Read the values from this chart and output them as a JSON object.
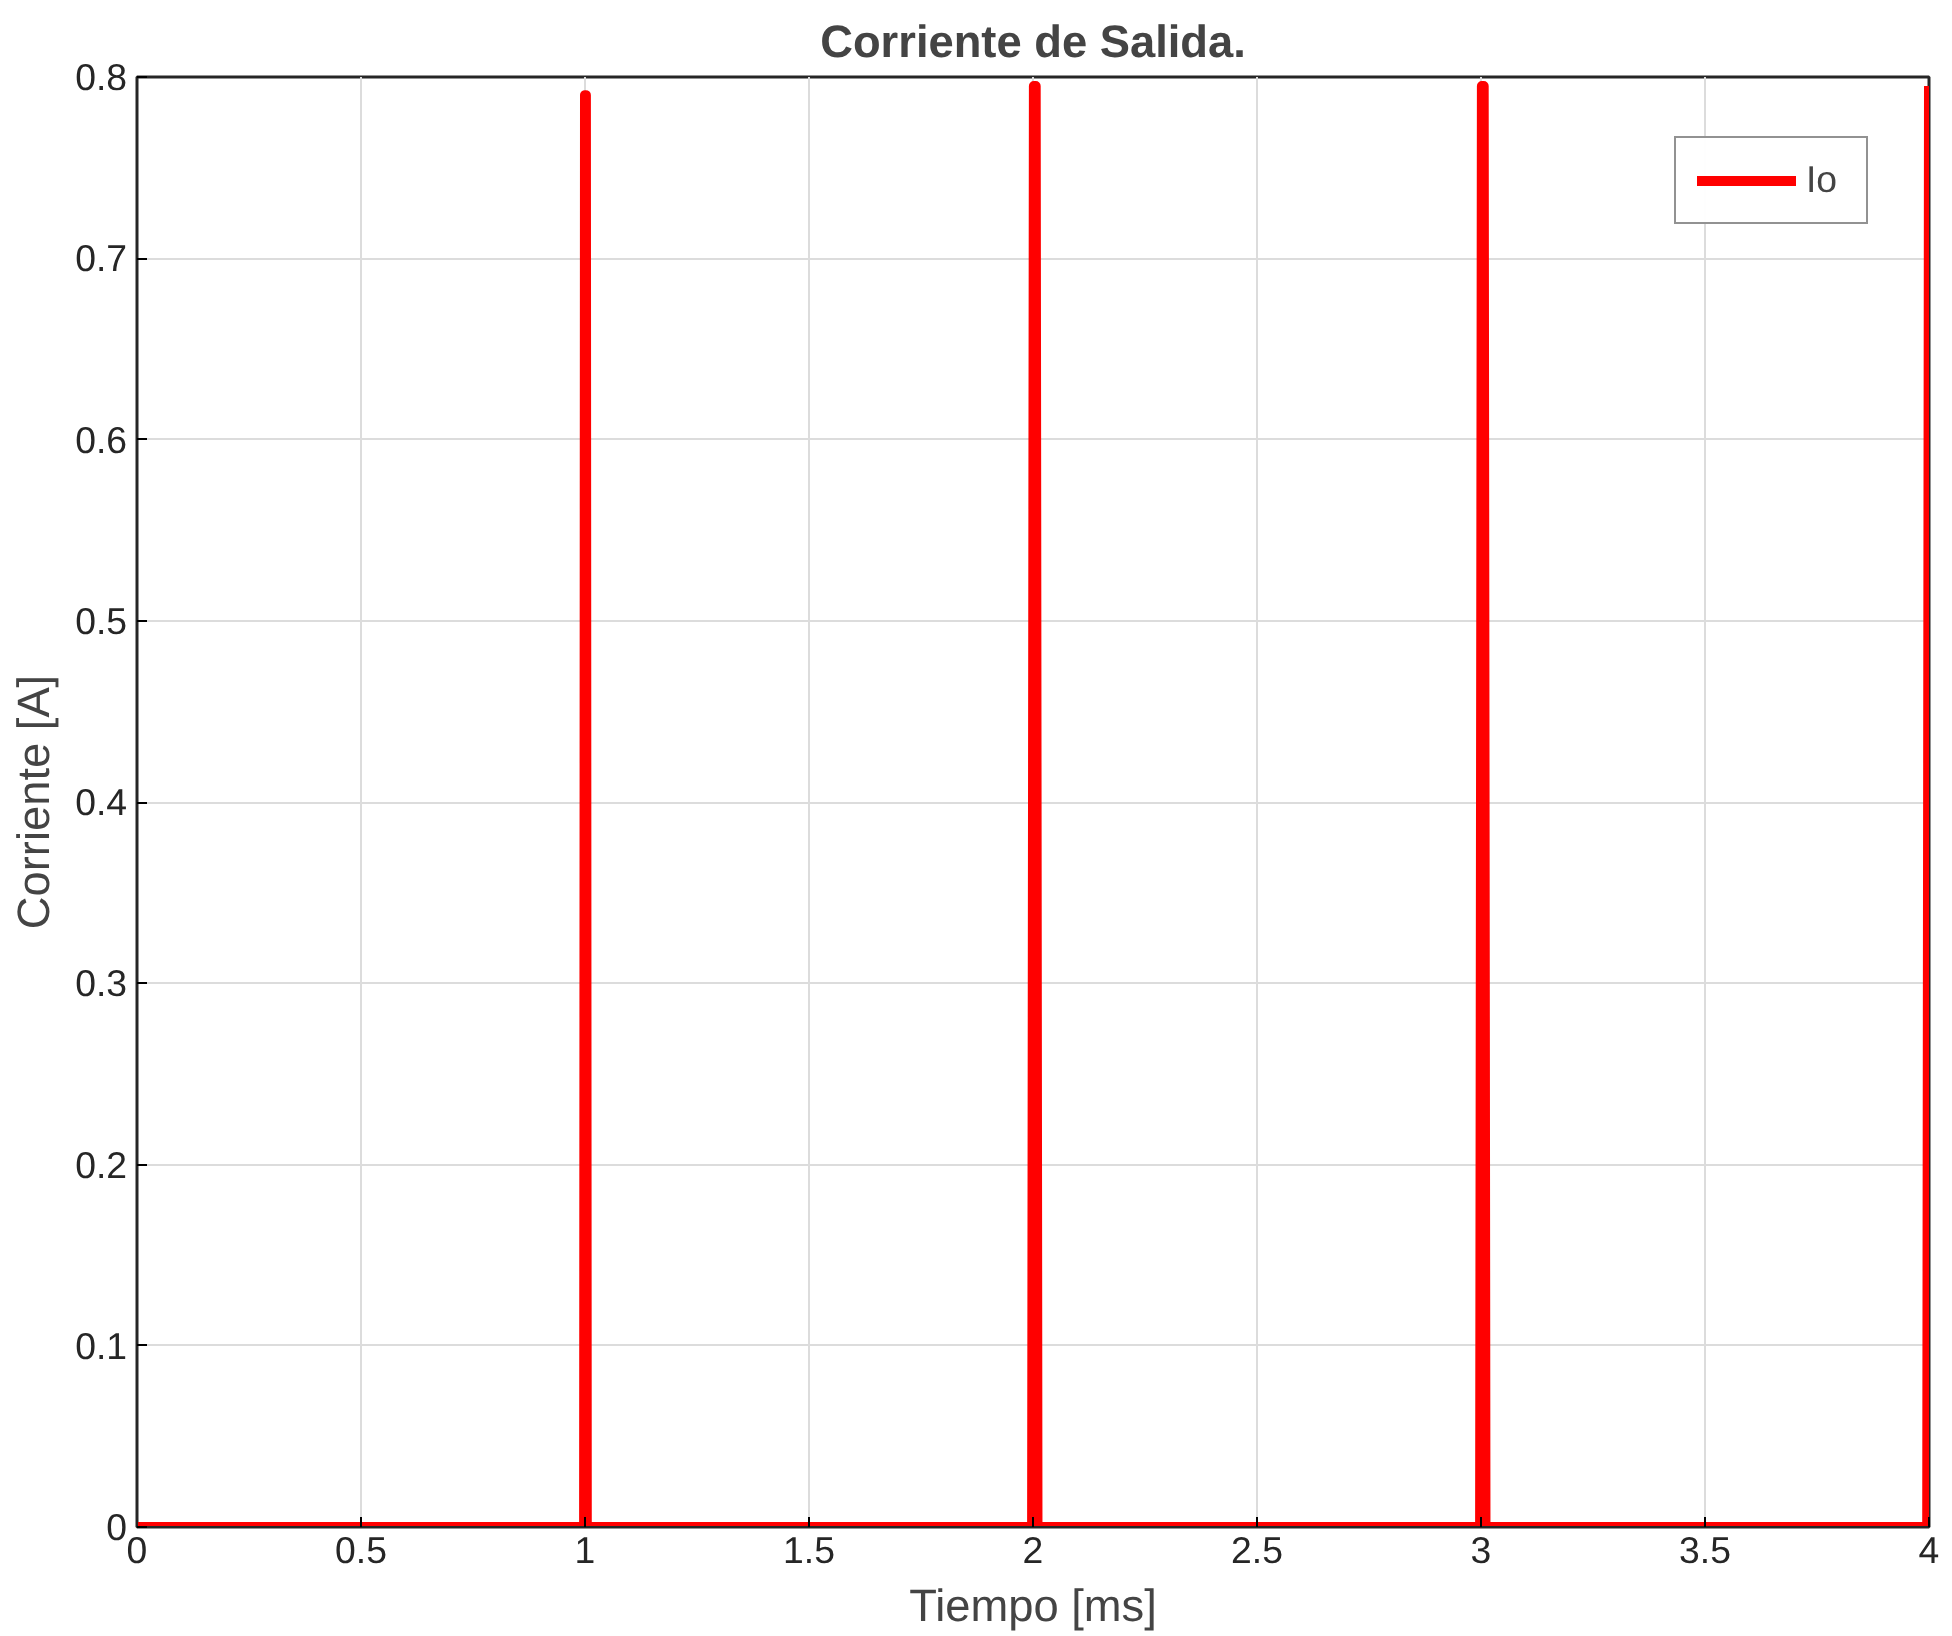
{
  "chart_data": {
    "type": "line",
    "title": "Corriente de Salida.",
    "xlabel": "Tiempo [ms]",
    "ylabel": "Corriente [A]",
    "series": [
      {
        "name": "Io",
        "color": "#ff0000",
        "x": [
          0,
          0.998,
          1.0,
          1.002,
          1.004,
          1.998,
          2.002,
          2.006,
          2.01,
          2.998,
          3.002,
          3.006,
          3.01,
          3.996,
          4.0
        ],
        "values": [
          0,
          0,
          0.79,
          0.79,
          0,
          0,
          0.795,
          0.795,
          0,
          0,
          0.795,
          0.795,
          0,
          0,
          0.795
        ]
      }
    ],
    "xlim": [
      0,
      4
    ],
    "ylim": [
      0,
      0.8
    ],
    "xticks": [
      0,
      0.5,
      1,
      1.5,
      2,
      2.5,
      3,
      3.5,
      4
    ],
    "yticks": [
      0,
      0.1,
      0.2,
      0.3,
      0.4,
      0.5,
      0.6,
      0.7,
      0.8
    ],
    "grid": true,
    "legend": "top right",
    "line_style": "solid"
  }
}
